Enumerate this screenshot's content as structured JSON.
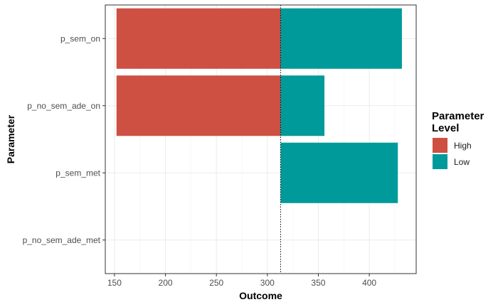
{
  "chart_data": {
    "type": "bar",
    "orientation": "horizontal",
    "title": "",
    "xlabel": "Outcome",
    "ylabel": "Parameter",
    "categories": [
      "p_sem_on",
      "p_no_sem_ade_on",
      "p_sem_met",
      "p_no_sem_ade_met"
    ],
    "x_ticks": [
      150,
      200,
      250,
      300,
      350,
      400
    ],
    "xlim": [
      141,
      446
    ],
    "baseline": 313,
    "series": [
      {
        "name": "High",
        "color": "#cd5042",
        "values": [
          {
            "category": "p_sem_on",
            "from": 152,
            "to": 313
          },
          {
            "category": "p_no_sem_ade_on",
            "from": 152,
            "to": 313
          }
        ]
      },
      {
        "name": "Low",
        "color": "#009a9b",
        "values": [
          {
            "category": "p_sem_on",
            "from": 313,
            "to": 432
          },
          {
            "category": "p_no_sem_ade_on",
            "from": 313,
            "to": 356
          },
          {
            "category": "p_sem_met",
            "from": 313,
            "to": 428
          }
        ]
      }
    ],
    "legend": {
      "title_line1": "Parameter",
      "title_line2": "Level",
      "placement": "right"
    },
    "grid": true
  }
}
